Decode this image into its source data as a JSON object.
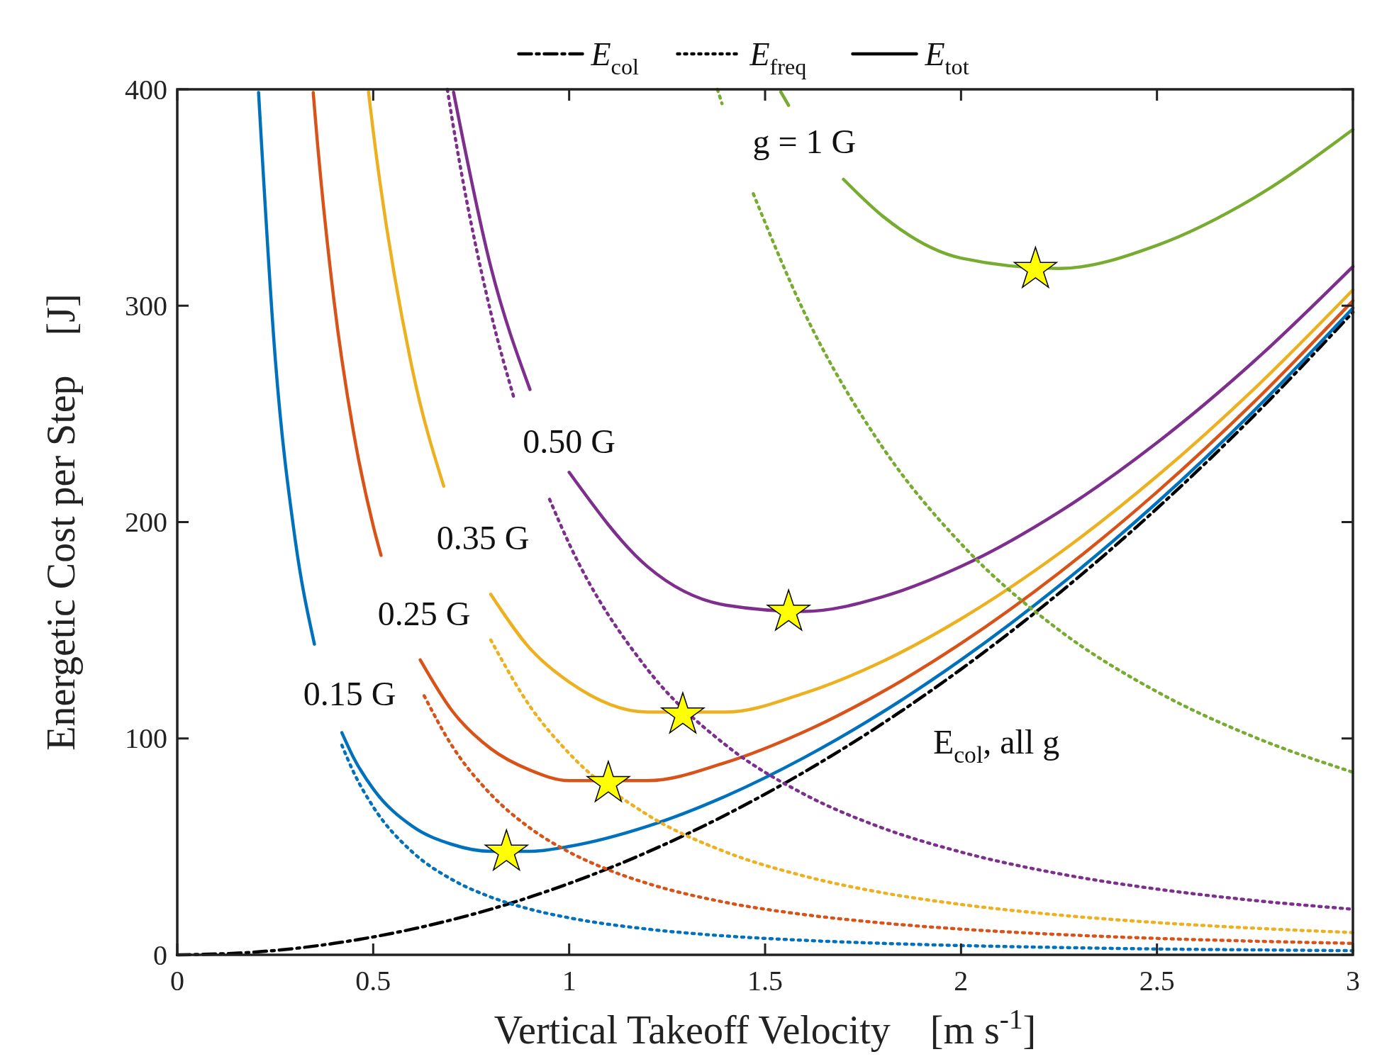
{
  "chart_data": {
    "type": "line",
    "xlabel": "Vertical Takeoff Velocity    [m s$^{-1}$]",
    "ylabel": "Energetic Cost per Step    [J]",
    "xlim": [
      0,
      3
    ],
    "ylim": [
      0,
      400
    ],
    "xticks": [
      0,
      0.5,
      1,
      1.5,
      2,
      2.5,
      3
    ],
    "yticks": [
      0,
      100,
      200,
      300,
      400
    ],
    "grid": false,
    "legend": "top",
    "series": [
      {
        "name": "E$_{col}$",
        "color": "#000000",
        "line_style": "dashdot",
        "x": [
          0,
          0.2,
          0.4,
          0.6,
          0.8,
          1.0,
          1.2,
          1.4,
          1.6,
          1.8,
          2.0,
          2.25,
          2.5,
          2.75,
          3.0
        ],
        "values": [
          0,
          1.3,
          5.3,
          11.9,
          21.1,
          33,
          47.5,
          64.7,
          84.5,
          106.9,
          132,
          167.1,
          206.3,
          249.6,
          297
        ]
      },
      {
        "name": "E$_{freq}$",
        "color": "#000000",
        "line_style": "dotted"
      },
      {
        "name": "E$_{tot}$",
        "color": "#000000",
        "line_style": "solid"
      },
      {
        "color": "#0072bd",
        "line_style": "dotted",
        "x": [
          0.42,
          0.45,
          0.5,
          0.6,
          0.7,
          0.8,
          0.9,
          1.0,
          1.2,
          1.4,
          1.6,
          1.8,
          2.0,
          2.25,
          2.5,
          2.75,
          3.0
        ],
        "values": [
          96.9,
          84.4,
          68.4,
          47.5,
          34.9,
          26.7,
          21.1,
          17.1,
          11.9,
          8.7,
          6.7,
          5.3,
          4.3,
          3.4,
          2.7,
          2.3,
          1.9
        ]
      },
      {
        "color": "#0072bd",
        "line_style": "solid",
        "x": [
          0.2075,
          0.25,
          0.3,
          0.35,
          0.38,
          0.42,
          0.45,
          0.5,
          0.6,
          0.7,
          0.8,
          0.9,
          1.0,
          1.2,
          1.4,
          1.6,
          1.8,
          2.0,
          2.25,
          2.5,
          2.75,
          3.0
        ],
        "values": [
          398.5,
          275.7,
          193.0,
          143.6,
          null,
          102.7,
          91.1,
          76.7,
          59.4,
          51.1,
          47.8,
          47.8,
          50.1,
          59.4,
          73.4,
          91.2,
          112.2,
          136.3,
          170.5,
          209.0,
          251.9,
          298.9
        ]
      },
      {
        "color": "#d95319",
        "line_style": "dotted",
        "x": [
          0.63,
          0.7,
          0.8,
          0.9,
          1.0,
          1.1,
          1.2,
          1.4,
          1.6,
          1.8,
          2.0,
          2.25,
          2.5,
          2.75,
          3.0
        ],
        "values": [
          119.7,
          96.9,
          74.2,
          58.6,
          47.5,
          39.3,
          33.0,
          24.2,
          18.6,
          14.7,
          11.9,
          9.4,
          7.6,
          6.3,
          5.3
        ]
      },
      {
        "color": "#d95319",
        "line_style": "solid",
        "x": [
          0.347,
          0.35,
          0.4,
          0.45,
          0.5,
          0.52,
          0.57,
          0.62,
          0.7,
          0.8,
          0.9,
          1.0,
          1.2,
          1.4,
          1.6,
          1.8,
          2.0,
          2.25,
          2.5,
          2.75,
          3.0
        ],
        "values": [
          398.5,
          391.7,
          302.2,
          241.3,
          198.3,
          184.6,
          null,
          136.3,
          113.1,
          95.3,
          85.4,
          80.5,
          80.5,
          88.9,
          103.1,
          121.6,
          143.9,
          176.5,
          213.9,
          255.9,
          302.3
        ]
      },
      {
        "color": "#edb120",
        "line_style": "dotted",
        "x": [
          0.8,
          0.9,
          1.0,
          1.2,
          1.4,
          1.6,
          1.8,
          2.0,
          2.25,
          2.5,
          2.75,
          3.0
        ],
        "values": [
          145.5,
          114.9,
          93.1,
          64.7,
          47.5,
          36.4,
          28.7,
          23.3,
          18.4,
          14.9,
          12.3,
          10.3
        ]
      },
      {
        "color": "#edb120",
        "line_style": "solid",
        "x": [
          0.488,
          0.5,
          0.6,
          0.68,
          0.74,
          0.8,
          0.9,
          1.0,
          1.2,
          1.4,
          1.6,
          1.8,
          2.0,
          2.25,
          2.5,
          2.75,
          3.0
        ],
        "values": [
          398.8,
          380.7,
          270.5,
          216.6,
          null,
          166.6,
          141.6,
          126.1,
          112.2,
          112.2,
          120.9,
          135.6,
          155.3,
          185.5,
          221.2,
          261.9,
          307.3
        ]
      },
      {
        "color": "#7e2f8e",
        "line_style": "dotted",
        "x": [
          0.6892,
          0.7,
          0.8,
          0.86,
          0.9,
          0.95,
          1.0,
          1.2,
          1.4,
          1.6,
          1.8,
          2.0,
          2.25,
          2.5,
          2.75,
          3.0
        ],
        "values": [
          400,
          387.8,
          296.9,
          256.9,
          null,
          210.5,
          190,
          131.9,
          96.9,
          74.2,
          58.6,
          47.5,
          37.5,
          30.4,
          25.1,
          21.1
        ]
      },
      {
        "color": "#7e2f8e",
        "line_style": "solid",
        "x": [
          0.705,
          0.8,
          0.9,
          0.95,
          1.0,
          1.2,
          1.4,
          1.6,
          1.8,
          2.0,
          2.25,
          2.5,
          2.75,
          3.0
        ],
        "values": [
          398.7,
          318.0,
          261.3,
          null,
          223,
          179.4,
          161.6,
          158.7,
          165.5,
          179.5,
          204.6,
          236.7,
          274.7,
          318.1
        ]
      },
      {
        "color": "#77ac30",
        "line_style": "dotted",
        "x": [
          1.3784,
          1.39,
          1.43,
          1.47,
          1.6,
          1.8,
          2.0,
          2.25,
          2.5,
          2.75,
          3.0
        ],
        "values": [
          400,
          393.4,
          null,
          351.7,
          296.9,
          234.5,
          190,
          150.1,
          121.6,
          100.5,
          84.4
        ]
      },
      {
        "color": "#77ac30",
        "line_style": "solid",
        "x": [
          1.54,
          1.56,
          1.62,
          1.7,
          1.8,
          2.0,
          2.25,
          2.5,
          2.75,
          3.0
        ],
        "values": [
          398.8,
          392.6,
          null,
          358.4,
          341.4,
          322,
          317.2,
          327.9,
          350.1,
          381.4
        ]
      },
      {
        "type": "scatter",
        "color": "#ffff00",
        "marker": "star",
        "x": [
          0.84,
          1.1,
          1.29,
          1.56,
          2.19
        ],
        "values": [
          47.5,
          79.2,
          110.9,
          158.4,
          316.8
        ]
      }
    ],
    "annotations": [
      "g = 1 G",
      "0.50 G",
      "0.35 G",
      "0.25 G",
      "0.15 G",
      "E$_{col}$, all g"
    ]
  }
}
